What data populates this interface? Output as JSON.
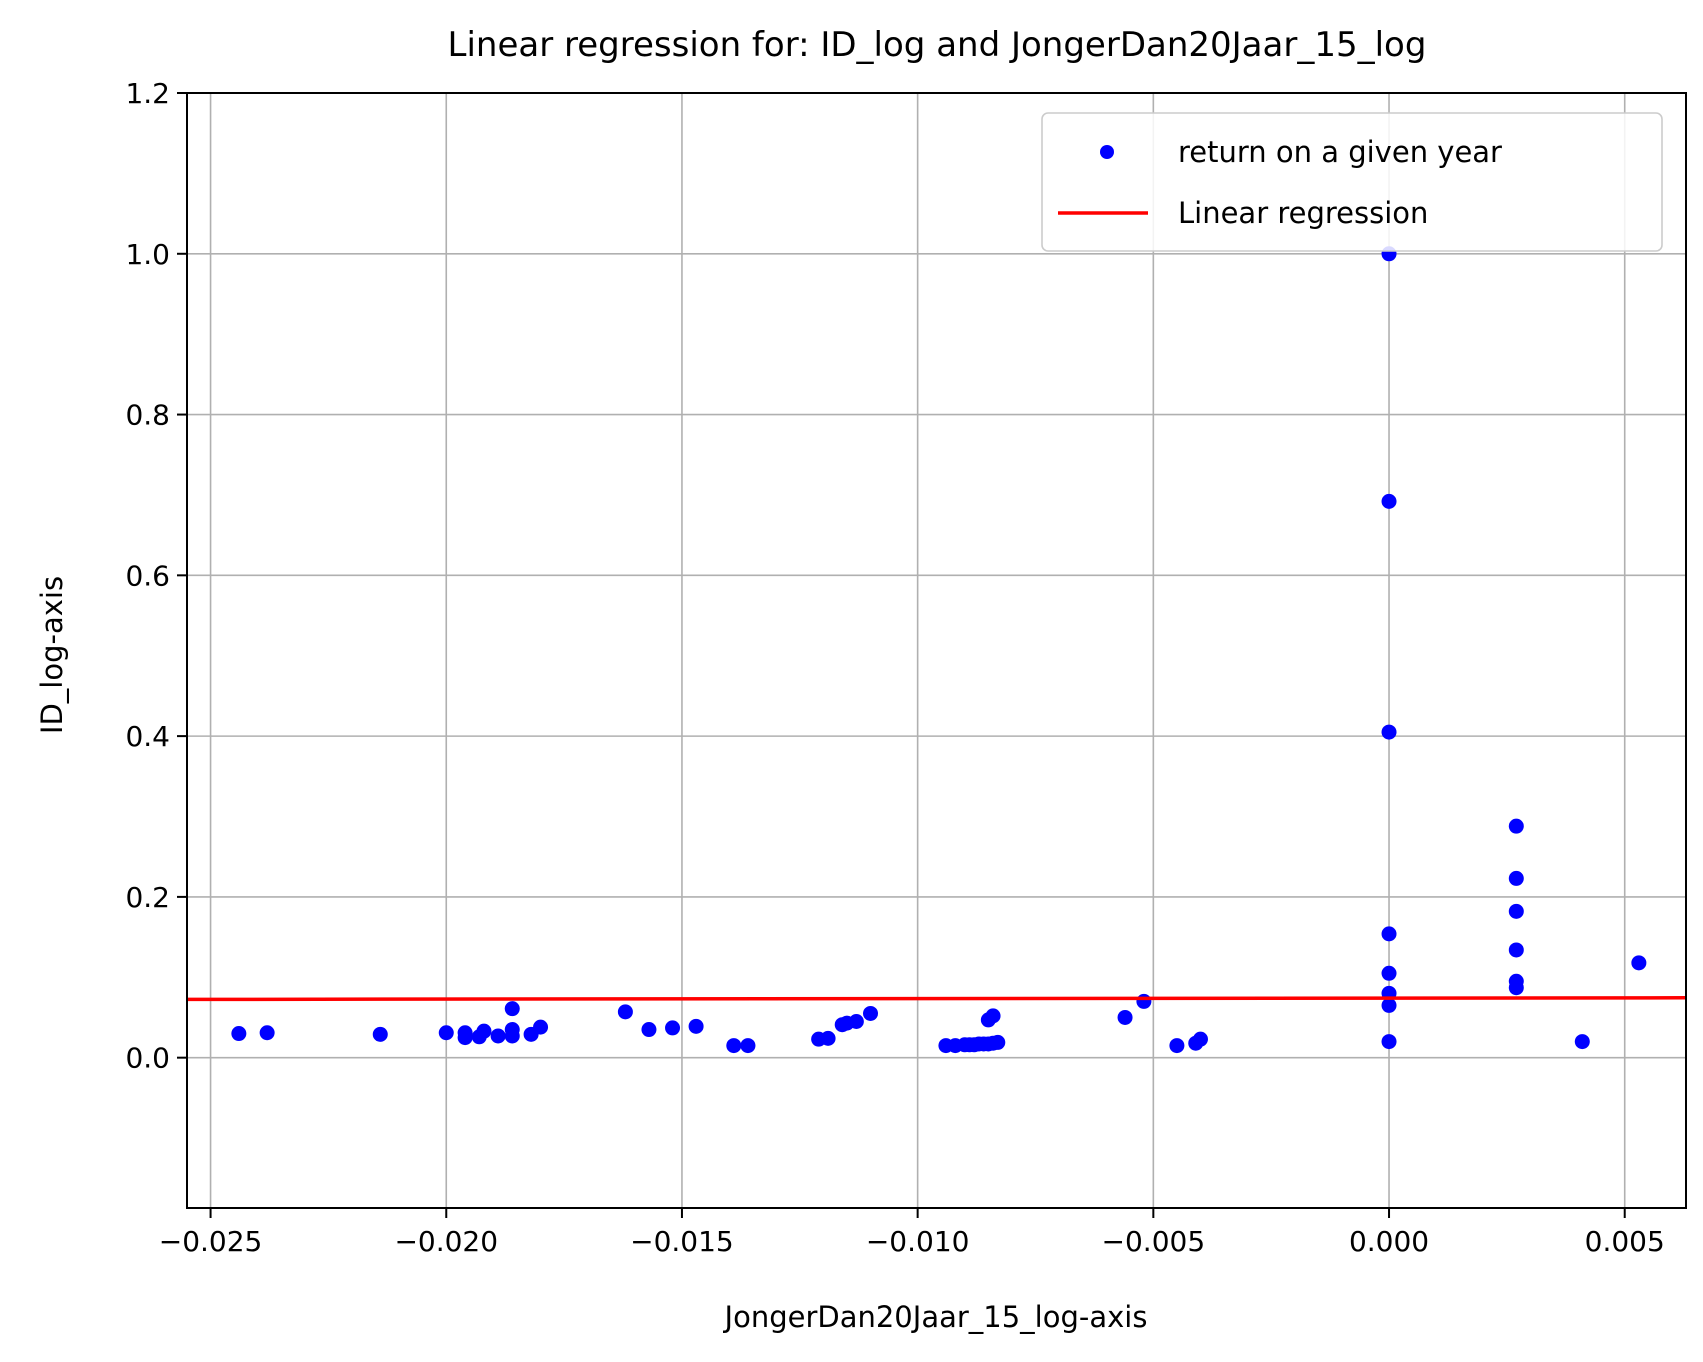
{
  "chart_data": {
    "type": "scatter",
    "title": "Linear regression for: ID_log and JongerDan20Jaar_15_log",
    "xlabel": "JongerDan20Jaar_15_log-axis",
    "ylabel": "ID_log-axis",
    "xlim": [
      -0.0255,
      0.0063
    ],
    "ylim": [
      -0.187,
      1.2
    ],
    "xticks": [
      -0.025,
      -0.02,
      -0.015,
      -0.01,
      -0.005,
      0.0,
      0.005
    ],
    "xtick_labels": [
      "−0.025",
      "−0.020",
      "−0.015",
      "−0.010",
      "−0.005",
      "0.000",
      "0.005"
    ],
    "yticks": [
      0.0,
      0.2,
      0.4,
      0.6,
      0.8,
      1.0,
      1.2
    ],
    "ytick_labels": [
      "0.0",
      "0.2",
      "0.4",
      "0.6",
      "0.8",
      "1.0",
      "1.2"
    ],
    "grid": true,
    "legend": {
      "position": "top-right",
      "entries": [
        "return on a given year",
        "Linear regression"
      ]
    },
    "series": [
      {
        "name": "return on a given year",
        "kind": "scatter",
        "color": "#0000ff",
        "points": [
          [
            -0.0244,
            0.03
          ],
          [
            -0.0238,
            0.031
          ],
          [
            -0.0214,
            0.029
          ],
          [
            -0.02,
            0.031
          ],
          [
            -0.0196,
            0.025
          ],
          [
            -0.0196,
            0.031
          ],
          [
            -0.0193,
            0.026
          ],
          [
            -0.0192,
            0.033
          ],
          [
            -0.0189,
            0.027
          ],
          [
            -0.0186,
            0.061
          ],
          [
            -0.0186,
            0.035
          ],
          [
            -0.0186,
            0.027
          ],
          [
            -0.0182,
            0.029
          ],
          [
            -0.018,
            0.038
          ],
          [
            -0.0162,
            0.057
          ],
          [
            -0.0157,
            0.035
          ],
          [
            -0.0152,
            0.037
          ],
          [
            -0.0147,
            0.039
          ],
          [
            -0.0139,
            0.015
          ],
          [
            -0.0136,
            0.015
          ],
          [
            -0.0121,
            0.023
          ],
          [
            -0.0119,
            0.024
          ],
          [
            -0.0116,
            0.041
          ],
          [
            -0.0115,
            0.043
          ],
          [
            -0.0113,
            0.045
          ],
          [
            -0.011,
            0.055
          ],
          [
            -0.0094,
            0.015
          ],
          [
            -0.0092,
            0.015
          ],
          [
            -0.009,
            0.016
          ],
          [
            -0.0089,
            0.016
          ],
          [
            -0.0088,
            0.016
          ],
          [
            -0.0087,
            0.017
          ],
          [
            -0.0086,
            0.017
          ],
          [
            -0.0085,
            0.017
          ],
          [
            -0.0084,
            0.018
          ],
          [
            -0.0083,
            0.019
          ],
          [
            -0.0085,
            0.047
          ],
          [
            -0.0084,
            0.052
          ],
          [
            -0.0056,
            0.05
          ],
          [
            -0.0052,
            0.07
          ],
          [
            -0.0045,
            0.015
          ],
          [
            -0.0041,
            0.018
          ],
          [
            -0.004,
            0.023
          ],
          [
            0.0,
            1.0
          ],
          [
            0.0,
            0.692
          ],
          [
            0.0,
            0.405
          ],
          [
            0.0,
            0.154
          ],
          [
            0.0,
            0.105
          ],
          [
            0.0,
            0.08
          ],
          [
            0.0,
            0.065
          ],
          [
            0.0,
            0.02
          ],
          [
            0.0027,
            0.288
          ],
          [
            0.0027,
            0.223
          ],
          [
            0.0027,
            0.182
          ],
          [
            0.0027,
            0.134
          ],
          [
            0.0027,
            0.095
          ],
          [
            0.0027,
            0.087
          ],
          [
            0.0041,
            0.02
          ],
          [
            0.0053,
            0.118
          ]
        ]
      },
      {
        "name": "Linear regression",
        "kind": "line",
        "color": "#ff0000",
        "x": [
          -0.0255,
          0.0063
        ],
        "y": [
          0.0725,
          0.0745
        ]
      }
    ]
  }
}
